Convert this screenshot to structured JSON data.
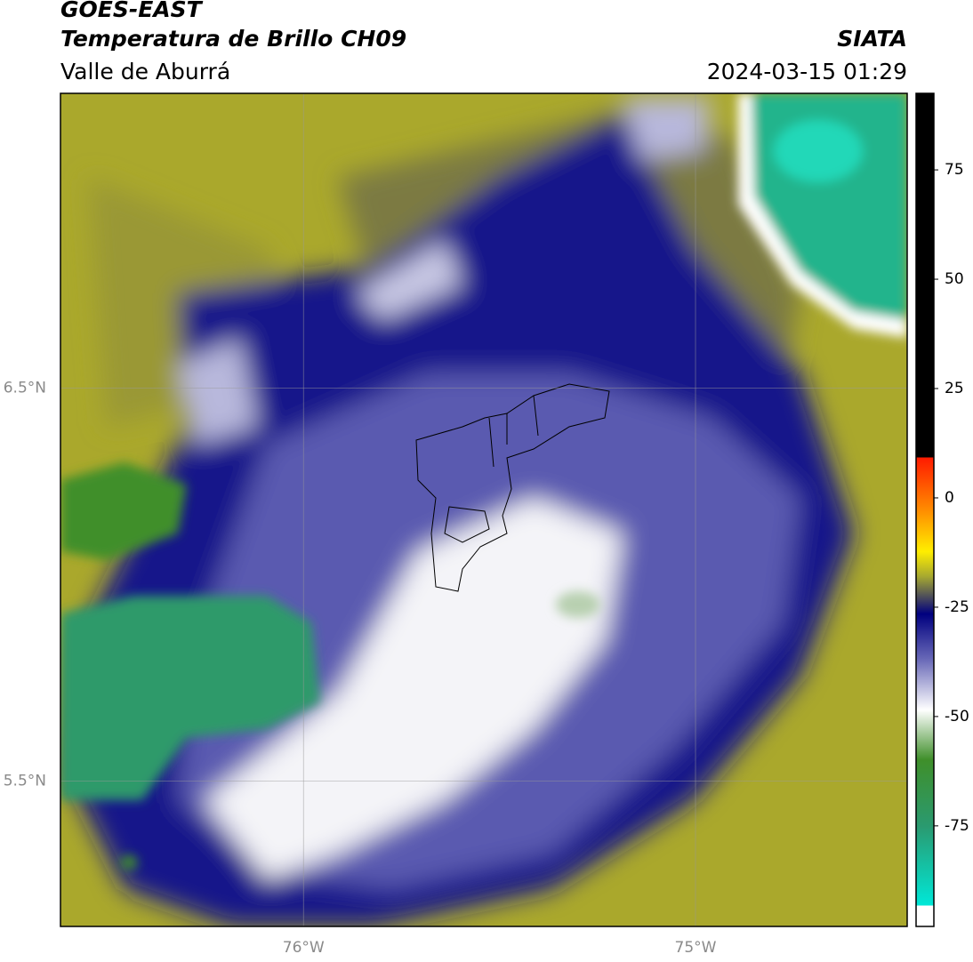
{
  "header": {
    "title": "GOES-EAST",
    "subtitle": "Temperatura de Brillo CH09",
    "region": "Valle de Aburrá",
    "source": "SIATA",
    "timestamp": "2024-03-15 01:29"
  },
  "map": {
    "xlim": [
      -76.62,
      -74.46
    ],
    "ylim": [
      5.13,
      7.25
    ],
    "xticks": [
      {
        "value": -76,
        "label": "76°W"
      },
      {
        "value": -75,
        "label": "75°W"
      }
    ],
    "yticks": [
      {
        "value": 6.5,
        "label": "6.5°N"
      },
      {
        "value": 5.5,
        "label": "5.5°N"
      }
    ],
    "grid": true
  },
  "colorbar": {
    "lim": [
      -98,
      92.5
    ],
    "ticks": [
      75,
      50,
      25,
      0,
      -25,
      -50,
      -75
    ]
  }
}
